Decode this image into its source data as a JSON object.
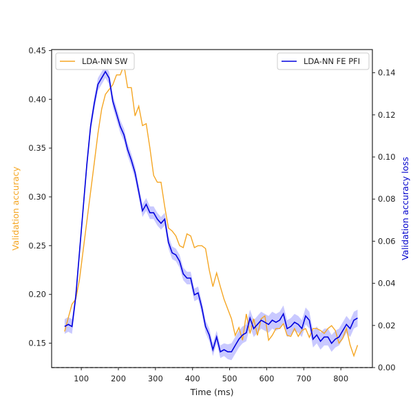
{
  "chart_data": {
    "type": "line",
    "xlabel": "Time (ms)",
    "xlim": [
      20,
      885
    ],
    "x_ticks": [
      100,
      200,
      300,
      400,
      500,
      600,
      700,
      800
    ],
    "left_axis": {
      "label": "Validation accuracy",
      "color": "#f5a623",
      "ylim": [
        0.125,
        0.451
      ],
      "ticks": [
        0.15,
        0.2,
        0.25,
        0.3,
        0.35,
        0.4,
        0.45
      ],
      "tick_labels": [
        "0.15",
        "0.20",
        "0.25",
        "0.30",
        "0.35",
        "0.40",
        "0.45"
      ]
    },
    "right_axis": {
      "label": "Validation accuracy loss",
      "color": "#0000cc",
      "ylim": [
        0.0,
        0.151
      ],
      "ticks": [
        0.0,
        0.02,
        0.04,
        0.06,
        0.08,
        0.1,
        0.12,
        0.14
      ],
      "tick_labels": [
        "0.00",
        "0.02",
        "0.04",
        "0.06",
        "0.08",
        "0.10",
        "0.12",
        "0.14"
      ]
    },
    "baseline_right": 0.0,
    "x": [
      55,
      65,
      75,
      85,
      95,
      105,
      115,
      125,
      135,
      145,
      155,
      165,
      175,
      185,
      195,
      205,
      215,
      225,
      235,
      245,
      255,
      265,
      275,
      285,
      295,
      305,
      315,
      325,
      335,
      345,
      355,
      365,
      375,
      385,
      395,
      405,
      415,
      425,
      435,
      445,
      455,
      465,
      475,
      485,
      495,
      505,
      515,
      525,
      535,
      545,
      555,
      565,
      575,
      585,
      595,
      605,
      615,
      625,
      635,
      645,
      655,
      665,
      675,
      685,
      695,
      705,
      715,
      725,
      735,
      745,
      755,
      765,
      775,
      785,
      795,
      805,
      815,
      825,
      835,
      845
    ],
    "series": [
      {
        "name": "LDA-NN SW",
        "axis": "left",
        "color": "#f5a623",
        "values": [
          0.162,
          0.176,
          0.19,
          0.195,
          0.215,
          0.245,
          0.275,
          0.305,
          0.335,
          0.365,
          0.39,
          0.405,
          0.41,
          0.415,
          0.425,
          0.425,
          0.435,
          0.412,
          0.412,
          0.383,
          0.393,
          0.373,
          0.375,
          0.35,
          0.322,
          0.315,
          0.315,
          0.29,
          0.268,
          0.265,
          0.26,
          0.25,
          0.248,
          0.262,
          0.26,
          0.248,
          0.25,
          0.25,
          0.247,
          0.225,
          0.208,
          0.222,
          0.208,
          0.195,
          0.185,
          0.175,
          0.158,
          0.166,
          0.153,
          0.18,
          0.16,
          0.175,
          0.158,
          0.175,
          0.178,
          0.153,
          0.158,
          0.165,
          0.165,
          0.17,
          0.158,
          0.157,
          0.165,
          0.157,
          0.163,
          0.165,
          0.156,
          0.165,
          0.165,
          0.163,
          0.16,
          0.165,
          0.168,
          0.163,
          0.15,
          0.155,
          0.165,
          0.148,
          0.137,
          0.148
        ]
      },
      {
        "name": "LDA-NN FE PFI",
        "axis": "right",
        "color": "#0000dd",
        "band_color": "#8888ff",
        "values": [
          0.0195,
          0.0205,
          0.0195,
          0.0335,
          0.0545,
          0.0755,
          0.0965,
          0.1145,
          0.1255,
          0.1345,
          0.1375,
          0.1405,
          0.1375,
          0.1265,
          0.1205,
          0.1145,
          0.1105,
          0.1035,
          0.0985,
          0.0925,
          0.0835,
          0.0745,
          0.0775,
          0.0735,
          0.0735,
          0.0705,
          0.0685,
          0.0705,
          0.0595,
          0.0545,
          0.0535,
          0.0505,
          0.0445,
          0.0425,
          0.0425,
          0.0345,
          0.0355,
          0.0285,
          0.0195,
          0.0155,
          0.0085,
          0.0145,
          0.0075,
          0.0085,
          0.0075,
          0.0075,
          0.0105,
          0.0135,
          0.0155,
          0.0165,
          0.0235,
          0.0185,
          0.0205,
          0.0225,
          0.0215,
          0.0205,
          0.0225,
          0.0215,
          0.0225,
          0.0255,
          0.0185,
          0.0195,
          0.0215,
          0.0205,
          0.0185,
          0.0245,
          0.0225,
          0.0135,
          0.0155,
          0.0125,
          0.0145,
          0.0145,
          0.0115,
          0.0135,
          0.0145,
          0.0175,
          0.0205,
          0.0185,
          0.0225,
          0.0235
        ],
        "band_halfwidth": [
          0.0035,
          0.0035,
          0.0035,
          0.003,
          0.003,
          0.003,
          0.003,
          0.003,
          0.003,
          0.003,
          0.003,
          0.003,
          0.003,
          0.003,
          0.003,
          0.003,
          0.003,
          0.003,
          0.003,
          0.003,
          0.003,
          0.003,
          0.003,
          0.003,
          0.003,
          0.003,
          0.003,
          0.003,
          0.003,
          0.003,
          0.003,
          0.003,
          0.003,
          0.003,
          0.003,
          0.003,
          0.003,
          0.003,
          0.003,
          0.003,
          0.003,
          0.003,
          0.003,
          0.003,
          0.0035,
          0.004,
          0.004,
          0.004,
          0.004,
          0.004,
          0.004,
          0.004,
          0.004,
          0.004,
          0.004,
          0.004,
          0.004,
          0.004,
          0.004,
          0.004,
          0.004,
          0.004,
          0.004,
          0.004,
          0.004,
          0.004,
          0.004,
          0.004,
          0.004,
          0.004,
          0.004,
          0.004,
          0.004,
          0.004,
          0.004,
          0.004,
          0.004,
          0.004,
          0.004,
          0.004
        ]
      }
    ],
    "legends": [
      {
        "entry": "LDA-NN SW",
        "placement": "upper-left"
      },
      {
        "entry": "LDA-NN FE PFI",
        "placement": "upper-right"
      }
    ],
    "grid": false
  }
}
